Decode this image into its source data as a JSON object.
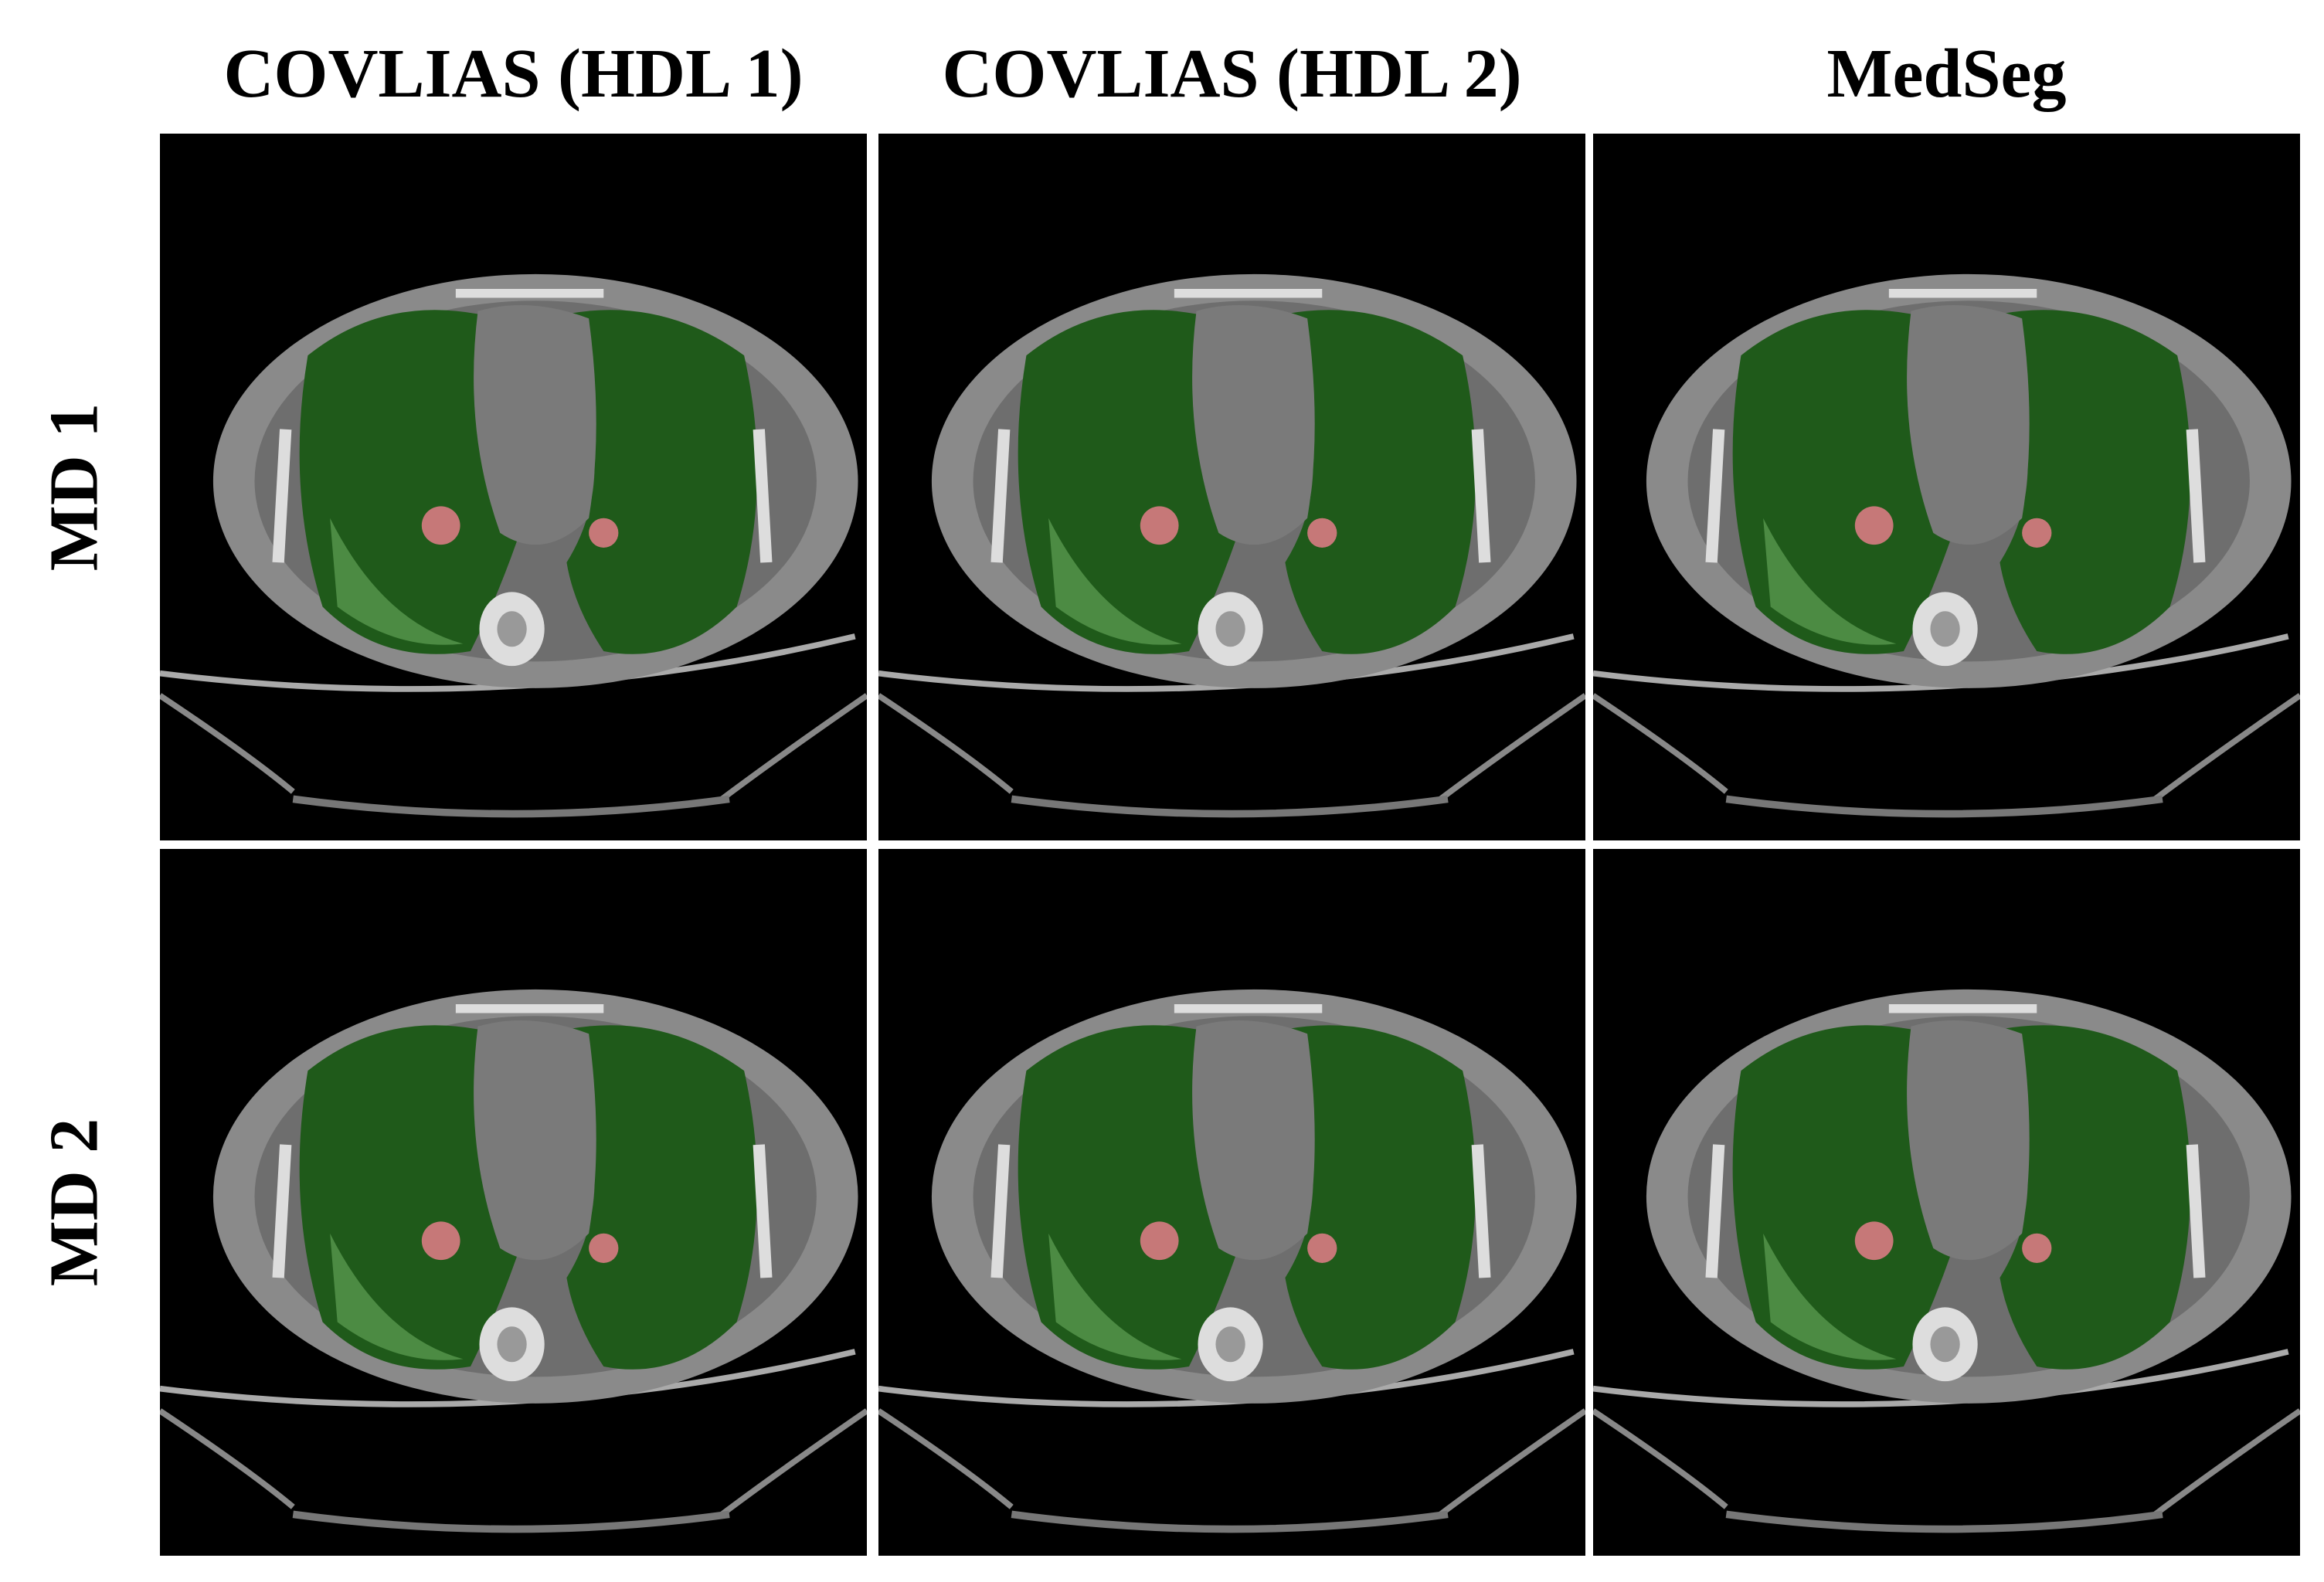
{
  "headers": {
    "columns": [
      "COVLIAS (HDL 1)",
      "COVLIAS (HDL 2)",
      "MedSeg"
    ],
    "rows": [
      "MD 1",
      "MD 2"
    ]
  }
}
